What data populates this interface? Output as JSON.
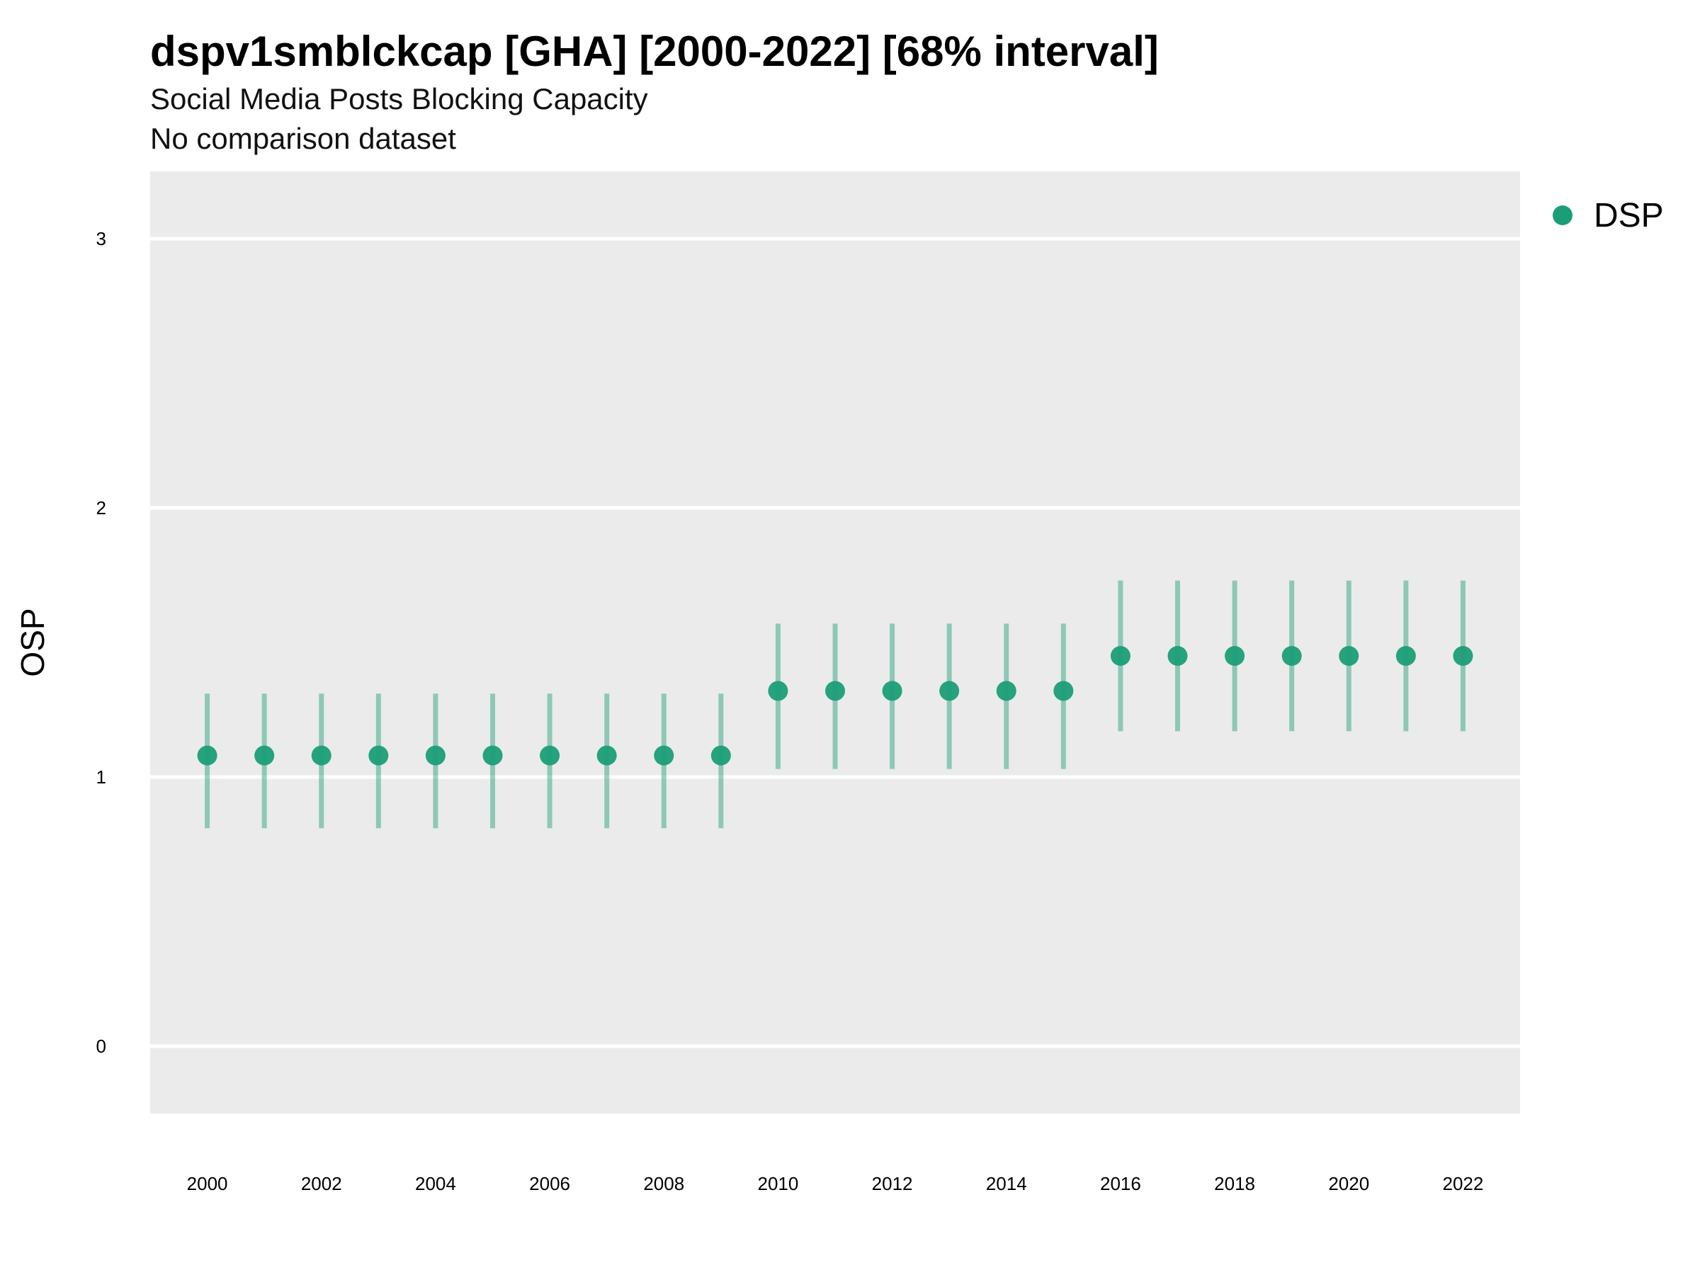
{
  "title": "dspv1smblckcap [GHA] [2000-2022] [68% interval]",
  "subtitle": "Social Media Posts Blocking Capacity",
  "subtitle2": "No comparison dataset",
  "colors": {
    "point": "#1b9e77",
    "panel": "#ebebeb",
    "grid": "#ffffff"
  },
  "chart_data": {
    "type": "scatter",
    "title": "dspv1smblckcap [GHA] [2000-2022] [68% interval]",
    "subtitle": "Social Media Posts Blocking Capacity",
    "xlabel": "",
    "ylabel": "OSP",
    "xlim": [
      1999,
      2023
    ],
    "ylim": [
      -0.25,
      3.25
    ],
    "grid": true,
    "legend_position": "top-right",
    "x_ticks": [
      "2000",
      "2002",
      "2004",
      "2006",
      "2008",
      "2010",
      "2012",
      "2014",
      "2016",
      "2018",
      "2020",
      "2022"
    ],
    "y_ticks": [
      "0",
      "1",
      "2",
      "3"
    ],
    "series": [
      {
        "name": "DSP",
        "x": [
          2000,
          2001,
          2002,
          2003,
          2004,
          2005,
          2006,
          2007,
          2008,
          2009,
          2010,
          2011,
          2012,
          2013,
          2014,
          2015,
          2016,
          2017,
          2018,
          2019,
          2020,
          2021,
          2022
        ],
        "y": [
          1.08,
          1.08,
          1.08,
          1.08,
          1.08,
          1.08,
          1.08,
          1.08,
          1.08,
          1.08,
          1.32,
          1.32,
          1.32,
          1.32,
          1.32,
          1.32,
          1.45,
          1.45,
          1.45,
          1.45,
          1.45,
          1.45,
          1.45
        ],
        "lower": [
          0.81,
          0.81,
          0.81,
          0.81,
          0.81,
          0.81,
          0.81,
          0.81,
          0.81,
          0.81,
          1.03,
          1.03,
          1.03,
          1.03,
          1.03,
          1.03,
          1.17,
          1.17,
          1.17,
          1.17,
          1.17,
          1.17,
          1.17
        ],
        "upper": [
          1.31,
          1.31,
          1.31,
          1.31,
          1.31,
          1.31,
          1.31,
          1.31,
          1.31,
          1.31,
          1.57,
          1.57,
          1.57,
          1.57,
          1.57,
          1.57,
          1.73,
          1.73,
          1.73,
          1.73,
          1.73,
          1.73,
          1.73
        ]
      }
    ]
  }
}
